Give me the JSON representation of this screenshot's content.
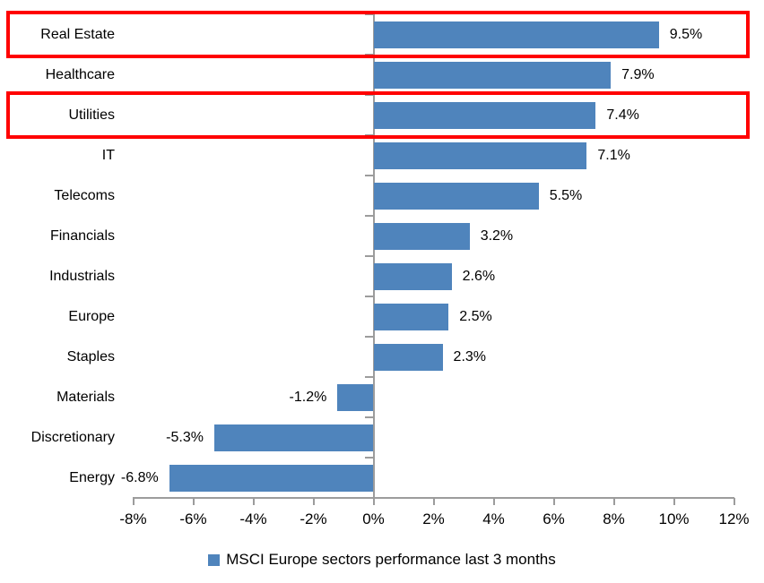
{
  "chart_data": {
    "type": "bar",
    "orientation": "horizontal",
    "title": "",
    "categories": [
      "Real Estate",
      "Healthcare",
      "Utilities",
      "IT",
      "Telecoms",
      "Financials",
      "Industrials",
      "Europe",
      "Staples",
      "Materials",
      "Discretionary",
      "Energy"
    ],
    "values": [
      9.5,
      7.9,
      7.4,
      7.1,
      5.5,
      3.2,
      2.6,
      2.5,
      2.3,
      -1.2,
      -5.3,
      -6.8
    ],
    "value_labels": [
      "9.5%",
      "7.9%",
      "7.4%",
      "7.1%",
      "5.5%",
      "3.2%",
      "2.6%",
      "2.5%",
      "2.3%",
      "-1.2%",
      "-5.3%",
      "-6.8%"
    ],
    "xlabel": "",
    "ylabel": "",
    "xlim": [
      -8,
      12
    ],
    "x_tick_labels": [
      "-8%",
      "-6%",
      "-4%",
      "-2%",
      "0%",
      "2%",
      "4%",
      "6%",
      "8%",
      "10%",
      "12%"
    ],
    "x_tick_values": [
      -8,
      -6,
      -4,
      -2,
      0,
      2,
      4,
      6,
      8,
      10,
      12
    ],
    "grid": false,
    "legend_position": "bottom-center",
    "legend": {
      "label": "MSCI Europe sectors performance last 3 months",
      "marker": "square-icon"
    },
    "colors": {
      "bar_fill": "#4F84BC",
      "axis_line": "#9C9C9C",
      "text": "#000000",
      "highlight_border": "#FF0000"
    },
    "annotations": {
      "highlighted_categories": [
        "Real Estate",
        "Utilities"
      ],
      "highlight_style": "red-rectangle-outline"
    }
  }
}
